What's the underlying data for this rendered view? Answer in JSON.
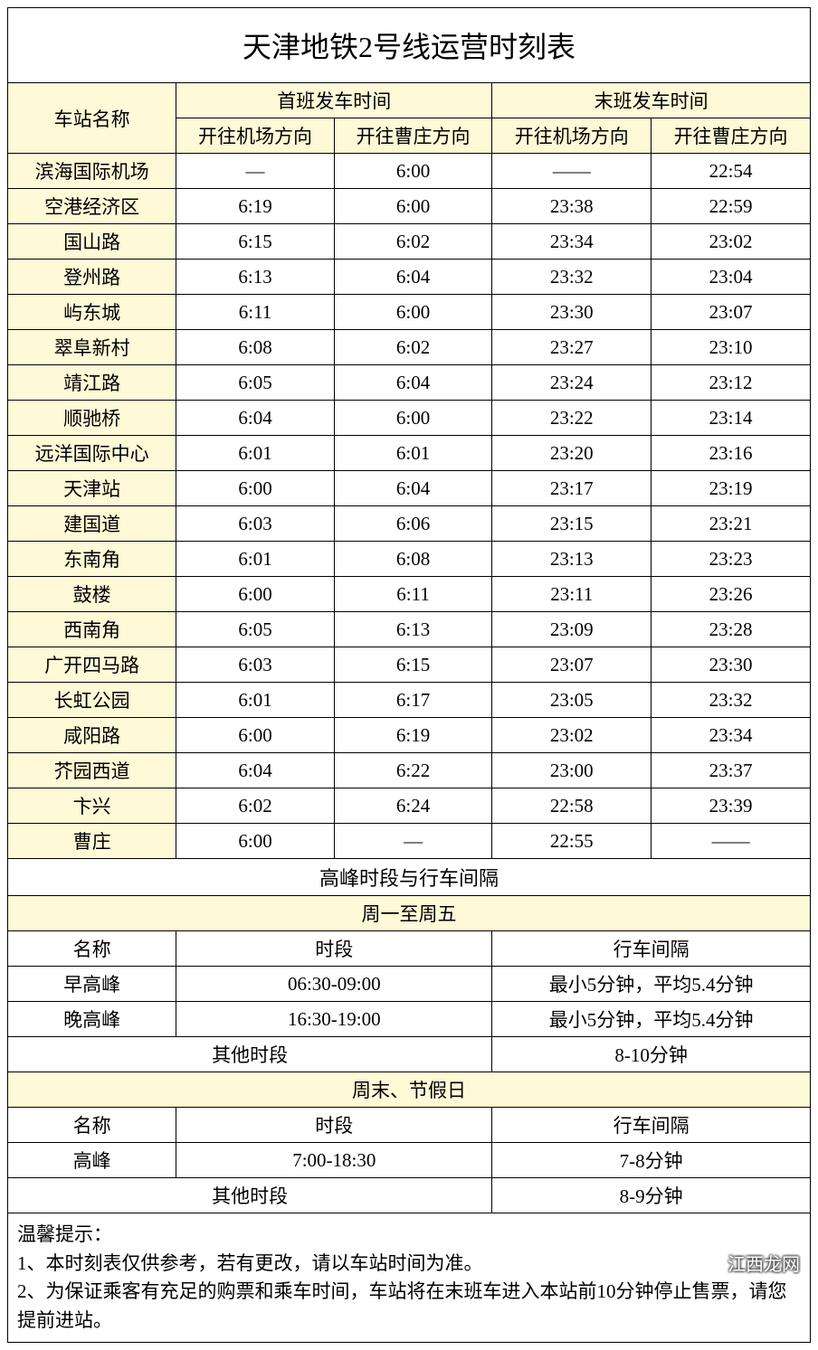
{
  "title": "天津地铁2号线运营时刻表",
  "headers": {
    "station": "车站名称",
    "first_group": "首班发车时间",
    "last_group": "末班发车时间",
    "to_airport": "开往机场方向",
    "to_caozhuang": "开往曹庄方向"
  },
  "colors": {
    "header_bg": "#fef9d7",
    "border": "#000000",
    "background": "#ffffff"
  },
  "stations": [
    {
      "name": "滨海国际机场",
      "fa": "—",
      "fc": "6:00",
      "la": "——",
      "lc": "22:54"
    },
    {
      "name": "空港经济区",
      "fa": "6:19",
      "fc": "6:00",
      "la": "23:38",
      "lc": "22:59"
    },
    {
      "name": "国山路",
      "fa": "6:15",
      "fc": "6:02",
      "la": "23:34",
      "lc": "23:02"
    },
    {
      "name": "登州路",
      "fa": "6:13",
      "fc": "6:04",
      "la": "23:32",
      "lc": "23:04"
    },
    {
      "name": "屿东城",
      "fa": "6:11",
      "fc": "6:00",
      "la": "23:30",
      "lc": "23:07"
    },
    {
      "name": "翠阜新村",
      "fa": "6:08",
      "fc": "6:02",
      "la": "23:27",
      "lc": "23:10"
    },
    {
      "name": "靖江路",
      "fa": "6:05",
      "fc": "6:04",
      "la": "23:24",
      "lc": "23:12"
    },
    {
      "name": "顺驰桥",
      "fa": "6:04",
      "fc": "6:00",
      "la": "23:22",
      "lc": "23:14"
    },
    {
      "name": "远洋国际中心",
      "fa": "6:01",
      "fc": "6:01",
      "la": "23:20",
      "lc": "23:16"
    },
    {
      "name": "天津站",
      "fa": "6:00",
      "fc": "6:04",
      "la": "23:17",
      "lc": "23:19"
    },
    {
      "name": "建国道",
      "fa": "6:03",
      "fc": "6:06",
      "la": "23:15",
      "lc": "23:21"
    },
    {
      "name": "东南角",
      "fa": "6:01",
      "fc": "6:08",
      "la": "23:13",
      "lc": "23:23"
    },
    {
      "name": "鼓楼",
      "fa": "6:00",
      "fc": "6:11",
      "la": "23:11",
      "lc": "23:26"
    },
    {
      "name": "西南角",
      "fa": "6:05",
      "fc": "6:13",
      "la": "23:09",
      "lc": "23:28"
    },
    {
      "name": "广开四马路",
      "fa": "6:03",
      "fc": "6:15",
      "la": "23:07",
      "lc": "23:30"
    },
    {
      "name": "长虹公园",
      "fa": "6:01",
      "fc": "6:17",
      "la": "23:05",
      "lc": "23:32"
    },
    {
      "name": "咸阳路",
      "fa": "6:00",
      "fc": "6:19",
      "la": "23:02",
      "lc": "23:34"
    },
    {
      "name": "芥园西道",
      "fa": "6:04",
      "fc": "6:22",
      "la": "23:00",
      "lc": "23:37"
    },
    {
      "name": "卞兴",
      "fa": "6:02",
      "fc": "6:24",
      "la": "22:58",
      "lc": "23:39"
    },
    {
      "name": "曹庄",
      "fa": "6:00",
      "fc": "—",
      "la": "22:55",
      "lc": "——"
    }
  ],
  "peak": {
    "section_title": "高峰时段与行车间隔",
    "weekday_title": "周一至周五",
    "weekend_title": "周末、节假日",
    "col_name": "名称",
    "col_period": "时段",
    "col_interval": "行车间隔",
    "morning_label": "早高峰",
    "morning_period": "06:30-09:00",
    "morning_interval": "最小5分钟，平均5.4分钟",
    "evening_label": "晚高峰",
    "evening_period": "16:30-19:00",
    "evening_interval": "最小5分钟，平均5.4分钟",
    "other_label": "其他时段",
    "other_weekday_interval": "8-10分钟",
    "weekend_peak_label": "高峰",
    "weekend_peak_period": "7:00-18:30",
    "weekend_peak_interval": "7-8分钟",
    "weekend_other_interval": "8-9分钟"
  },
  "notes": {
    "title": "温馨提示：",
    "line1": "1、本时刻表仅供参考，若有更改，请以车站时间为准。",
    "line2": "2、为保证乘客有充足的购票和乘车时间，车站将在末班车进入本站前10分钟停止售票，请您提前进站。"
  },
  "watermark": "江西龙网"
}
